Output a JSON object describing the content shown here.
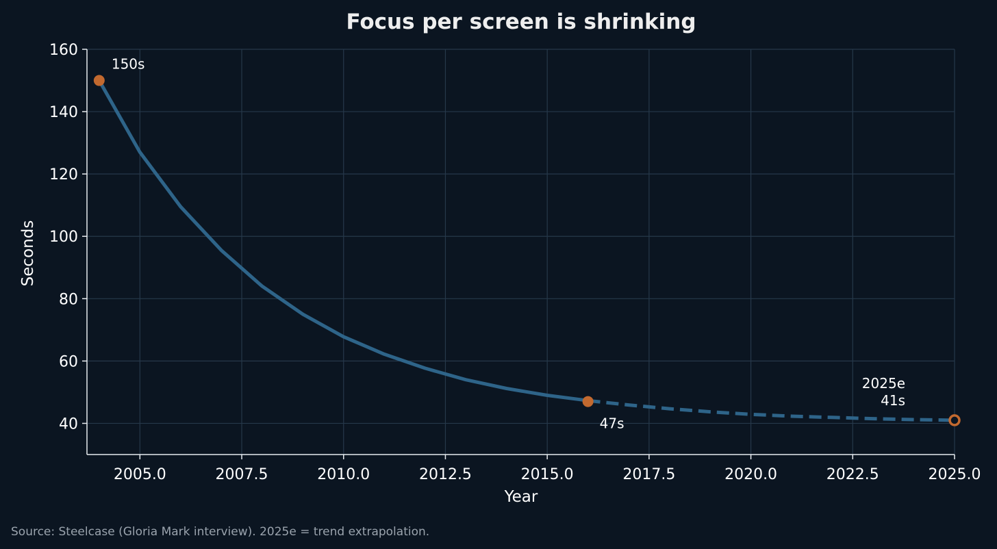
{
  "chart_data": {
    "type": "line",
    "title": "Focus per screen is shrinking",
    "xlabel": "Year",
    "ylabel": "Seconds",
    "xlim": [
      2003.7,
      2025
    ],
    "ylim": [
      30,
      160
    ],
    "grid": true,
    "x_ticks": [
      "2005.0",
      "2007.5",
      "2010.0",
      "2012.5",
      "2015.0",
      "2017.5",
      "2020.0",
      "2022.5",
      "2025.0"
    ],
    "x_tick_values": [
      2005,
      2007.5,
      2010,
      2012.5,
      2015,
      2017.5,
      2020,
      2022.5,
      2025
    ],
    "y_ticks": [
      "40",
      "60",
      "80",
      "100",
      "120",
      "140",
      "160"
    ],
    "y_tick_values": [
      40,
      60,
      80,
      100,
      120,
      140,
      160
    ],
    "series": [
      {
        "style": "solid",
        "x": [
          2004,
          2005,
          2006,
          2007,
          2008,
          2009,
          2010,
          2011,
          2012,
          2013,
          2014,
          2015,
          2016
        ],
        "y": [
          150,
          127,
          109.5,
          95.5,
          84,
          75,
          67.8,
          62.2,
          57.7,
          54,
          51.2,
          49,
          47.3
        ]
      },
      {
        "style": "dashed",
        "x": [
          2016,
          2017,
          2018,
          2019,
          2020,
          2021,
          2022,
          2023,
          2024,
          2025
        ],
        "y": [
          47.3,
          45.9,
          44.7,
          43.7,
          42.9,
          42.3,
          41.9,
          41.5,
          41.2,
          41
        ]
      }
    ],
    "markers": [
      {
        "x": 2004,
        "y": 150,
        "filled": true
      },
      {
        "x": 2016,
        "y": 47,
        "filled": true
      },
      {
        "x": 2025,
        "y": 41,
        "filled": false
      }
    ],
    "annotations": [
      {
        "x": 2004,
        "y": 150,
        "lines": [
          "150s"
        ],
        "anchor": "start"
      },
      {
        "x": 2016,
        "y": 47,
        "lines": [
          "47s"
        ],
        "anchor": "start"
      },
      {
        "x": 2025,
        "y": 41,
        "lines": [
          "2025e",
          "41s"
        ],
        "anchor": "end"
      }
    ],
    "source": "Source: Steelcase (Gloria Mark interview). 2025e = trend extrapolation."
  },
  "colors": {
    "background": "#0b1521",
    "line": "#2e6489",
    "marker": "#c2692f",
    "grid": "#26384a"
  }
}
